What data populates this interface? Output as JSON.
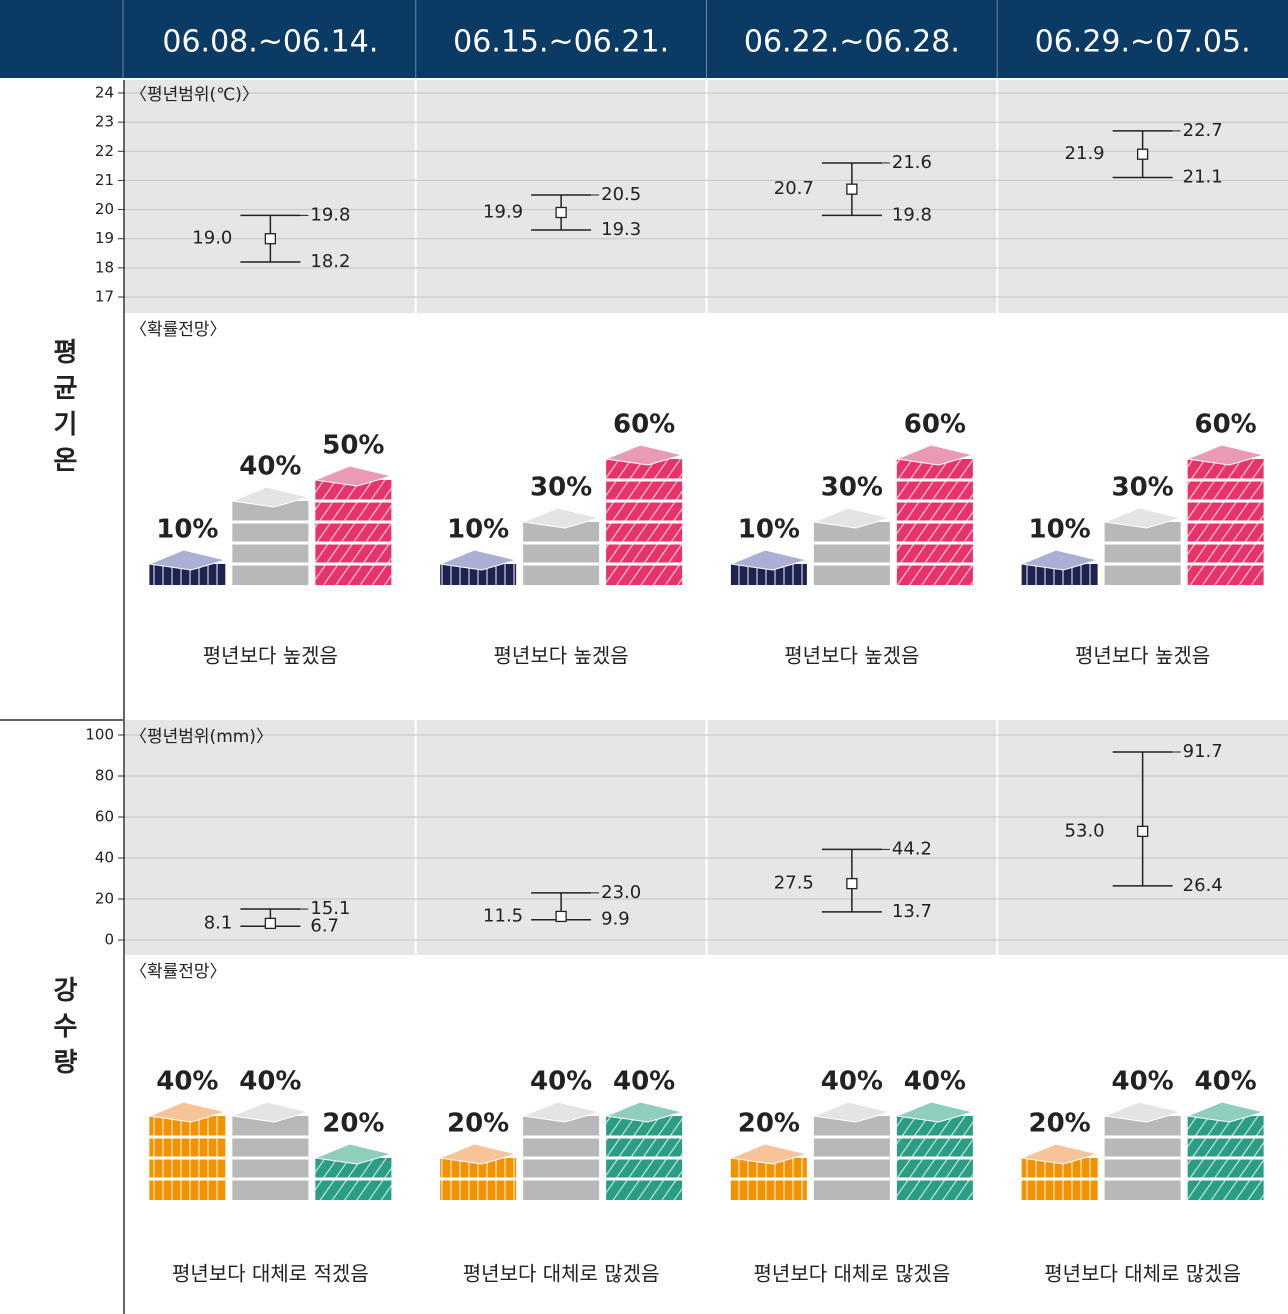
{
  "header": {
    "weeks": [
      "06.08.~06.14.",
      "06.15.~06.21.",
      "06.22.~06.28.",
      "06.29.~07.05."
    ]
  },
  "sections": [
    {
      "label": "평균기온",
      "range": {
        "type": "errorbar",
        "title": "〈평년범위(℃)〉",
        "ylim": [
          17,
          24
        ],
        "yticks": [
          17,
          18,
          19,
          20,
          21,
          22,
          23,
          24
        ],
        "grid": true,
        "values": [
          19.0,
          19.9,
          20.7,
          21.9
        ],
        "value_labels": [
          "19.0",
          "19.9",
          "20.7",
          "21.9"
        ],
        "low": [
          18.2,
          19.3,
          19.8,
          21.1
        ],
        "high": [
          19.8,
          20.5,
          21.6,
          22.7
        ]
      },
      "outlook": {
        "title": "〈확률전망〉",
        "colors": [
          "#1d2250",
          "#b8b8b8",
          "#e8336a"
        ],
        "top_colors": [
          "#a9b0d4",
          "#e4e4e4",
          "#eb9ab4"
        ],
        "weeks": [
          {
            "values": [
              10,
              40,
              50
            ],
            "value_labels": [
              "10%",
              "40%",
              "50%"
            ],
            "summary": "평년보다 높겠음"
          },
          {
            "values": [
              10,
              30,
              60
            ],
            "value_labels": [
              "10%",
              "30%",
              "60%"
            ],
            "summary": "평년보다 높겠음"
          },
          {
            "values": [
              10,
              30,
              60
            ],
            "value_labels": [
              "10%",
              "30%",
              "60%"
            ],
            "summary": "평년보다 높겠음"
          },
          {
            "values": [
              10,
              30,
              60
            ],
            "value_labels": [
              "10%",
              "30%",
              "60%"
            ],
            "summary": "평년보다 높겠음"
          }
        ]
      }
    },
    {
      "label": "강수량",
      "range": {
        "type": "errorbar",
        "title": "〈평년범위(mm)〉",
        "ylim": [
          0,
          100
        ],
        "yticks": [
          0,
          20,
          40,
          60,
          80,
          100
        ],
        "grid": true,
        "values": [
          8.1,
          11.5,
          27.5,
          53.0
        ],
        "value_labels": [
          "8.1",
          "11.5",
          "27.5",
          "53.0"
        ],
        "low": [
          6.7,
          9.9,
          13.7,
          26.4
        ],
        "high": [
          15.1,
          23.0,
          44.2,
          91.7
        ],
        "high_labels": [
          "15.1",
          "23.0",
          "44.2",
          "91.7"
        ]
      },
      "outlook": {
        "title": "〈확률전망〉",
        "colors": [
          "#f39200",
          "#b8b8b8",
          "#2a9d84"
        ],
        "top_colors": [
          "#f6c498",
          "#e4e4e4",
          "#8fcdbd"
        ],
        "weeks": [
          {
            "values": [
              40,
              40,
              20
            ],
            "value_labels": [
              "40%",
              "40%",
              "20%"
            ],
            "summary": "평년보다 대체로 적겠음"
          },
          {
            "values": [
              20,
              40,
              40
            ],
            "value_labels": [
              "20%",
              "40%",
              "40%"
            ],
            "summary": "평년보다 대체로 많겠음"
          },
          {
            "values": [
              20,
              40,
              40
            ],
            "value_labels": [
              "20%",
              "40%",
              "40%"
            ],
            "summary": "평년보다 대체로 많겠음"
          },
          {
            "values": [
              20,
              40,
              40
            ],
            "value_labels": [
              "20%",
              "40%",
              "40%"
            ],
            "summary": "평년보다 대체로 많겠음"
          }
        ]
      }
    }
  ]
}
